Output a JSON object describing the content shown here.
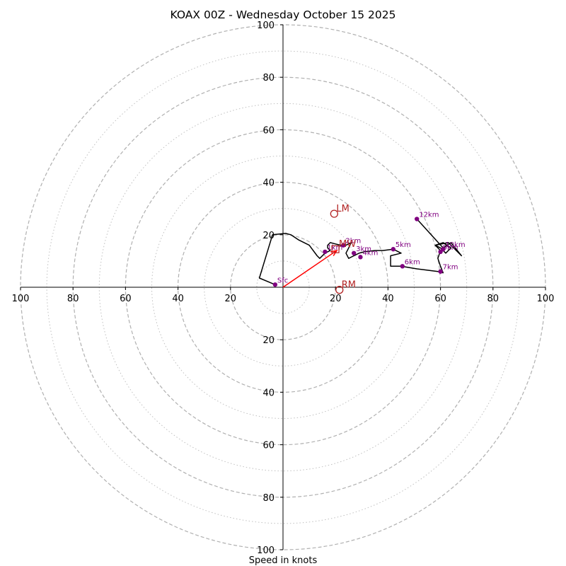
{
  "chart_data": {
    "type": "scatter",
    "title": "KOAX 00Z - Wednesday October 15 2025",
    "xlabel": "Speed in knots",
    "xlim": [
      -100,
      100
    ],
    "ylim": [
      -100,
      100
    ],
    "tick_labels": {
      "x": [
        "100",
        "80",
        "60",
        "40",
        "20",
        "20",
        "40",
        "60",
        "80",
        "100"
      ],
      "y": [
        "100",
        "80",
        "60",
        "40",
        "20",
        "20",
        "40",
        "60",
        "80",
        "100"
      ]
    },
    "rings": {
      "dashed": [
        20,
        40,
        60,
        80,
        100
      ],
      "dotted": [
        10,
        30,
        50,
        70,
        90
      ]
    },
    "colors": {
      "hodograph": "#000000",
      "height_points": "#800080",
      "motion": "#b22222",
      "shear_vector": "#ff0000",
      "rings": "#b0b0b0"
    },
    "hodograph_trace": [
      [
        -3,
        1
      ],
      [
        -9,
        3.5
      ],
      [
        -4,
        20
      ],
      [
        1,
        20.5
      ],
      [
        3,
        20
      ],
      [
        6,
        18
      ],
      [
        10,
        16
      ],
      [
        13,
        12
      ],
      [
        14,
        11
      ],
      [
        16,
        13
      ],
      [
        18,
        14
      ],
      [
        17,
        15
      ],
      [
        17,
        16
      ],
      [
        18,
        17
      ],
      [
        20,
        16.5
      ],
      [
        22,
        16
      ],
      [
        24,
        16
      ],
      [
        26,
        17
      ],
      [
        25,
        15
      ],
      [
        24,
        13
      ],
      [
        25,
        11
      ],
      [
        27,
        12
      ],
      [
        29,
        13
      ],
      [
        31,
        13.5
      ],
      [
        35,
        14
      ],
      [
        38,
        14
      ],
      [
        42,
        14.5
      ],
      [
        45,
        13
      ],
      [
        41,
        12
      ],
      [
        41,
        8
      ],
      [
        45,
        8
      ],
      [
        51,
        7
      ],
      [
        59,
        6
      ],
      [
        61,
        5.5
      ],
      [
        60,
        8
      ],
      [
        59,
        11
      ],
      [
        60,
        14
      ],
      [
        58,
        16
      ],
      [
        61,
        17
      ],
      [
        64,
        15
      ],
      [
        62,
        13
      ],
      [
        60,
        15
      ],
      [
        58,
        16
      ],
      [
        63,
        17
      ],
      [
        66,
        14
      ],
      [
        68,
        12
      ],
      [
        64,
        17
      ],
      [
        61,
        15
      ],
      [
        51,
        26
      ]
    ],
    "height_points": [
      {
        "label": "Sfc",
        "x": -3,
        "y": 1
      },
      {
        "label": "1km",
        "x": 16,
        "y": 13.5
      },
      {
        "label": "2km",
        "x": 23,
        "y": 16
      },
      {
        "label": "3km",
        "x": 27,
        "y": 13
      },
      {
        "label": "4km",
        "x": 29.5,
        "y": 11.5
      },
      {
        "label": "5km",
        "x": 42,
        "y": 14.5
      },
      {
        "label": "6km",
        "x": 45.5,
        "y": 8
      },
      {
        "label": "7km",
        "x": 60,
        "y": 6
      },
      {
        "label": "9km",
        "x": 60,
        "y": 13.5
      },
      {
        "label": "10km",
        "x": 61,
        "y": 14.5
      },
      {
        "label": "12km",
        "x": 51,
        "y": 26
      }
    ],
    "motion_markers": [
      {
        "label": "LM",
        "x": 19.5,
        "y": 28
      },
      {
        "label": "RM",
        "x": 21.5,
        "y": -1
      },
      {
        "label": "MW",
        "x": 20.5,
        "y": 14.5
      }
    ],
    "shear_vector": {
      "from": [
        0,
        0
      ],
      "to": [
        20.5,
        14
      ]
    }
  }
}
